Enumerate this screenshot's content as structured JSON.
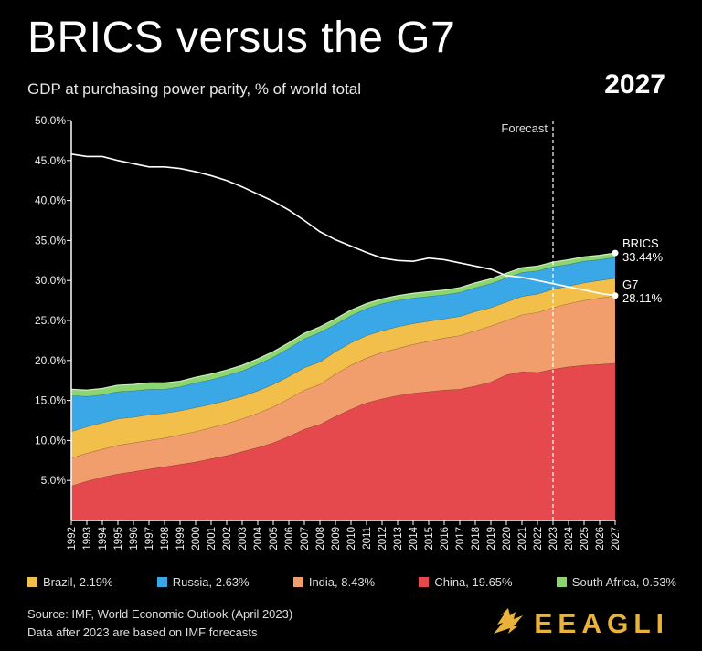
{
  "header": {
    "title": "BRICS versus the G7",
    "subtitle": "GDP at purchasing power parity, % of world total",
    "year": "2027"
  },
  "footer": {
    "source_line1": "Source: IMF, World Economic Outlook (April 2023)",
    "source_line2": "Data after 2023 are based on IMF forecasts",
    "brand": "EEAGLI",
    "brand_icon": "eagle-logo-icon"
  },
  "colors": {
    "background": "#000000",
    "china": "#e5484d",
    "india": "#f29e6c",
    "brazil": "#f2c04a",
    "russia": "#3aa8e6",
    "south_africa": "#8cd672",
    "g7_line": "#ffffff",
    "forecast_line": "#ffffff"
  },
  "legend": [
    {
      "key": "brazil",
      "label": "Brazil, 2.19%"
    },
    {
      "key": "russia",
      "label": "Russia, 2.63%"
    },
    {
      "key": "india",
      "label": "India, 8.43%"
    },
    {
      "key": "china",
      "label": "China, 19.65%"
    },
    {
      "key": "south_africa",
      "label": "South Africa, 0.53%"
    }
  ],
  "chart_data": {
    "type": "area",
    "stacked": true,
    "x": [
      1992,
      1993,
      1994,
      1995,
      1996,
      1997,
      1998,
      1999,
      2000,
      2001,
      2002,
      2003,
      2004,
      2005,
      2006,
      2007,
      2008,
      2009,
      2010,
      2011,
      2012,
      2013,
      2014,
      2015,
      2016,
      2017,
      2018,
      2019,
      2020,
      2021,
      2022,
      2023,
      2024,
      2025,
      2026,
      2027
    ],
    "ylim": [
      0,
      50
    ],
    "yticks": [
      5,
      10,
      15,
      20,
      25,
      30,
      35,
      40,
      45,
      50
    ],
    "ytick_labels": [
      "5.0%",
      "10.0%",
      "15.0%",
      "20.0%",
      "25.0%",
      "30.0%",
      "35.0%",
      "40.0%",
      "45.0%",
      "50.0%"
    ],
    "grid": false,
    "forecast_start": 2023,
    "forecast_label": "Forecast",
    "series": [
      {
        "key": "china",
        "name": "China, 19.65%",
        "values": [
          4.3,
          4.9,
          5.4,
          5.8,
          6.1,
          6.4,
          6.7,
          7.0,
          7.3,
          7.7,
          8.1,
          8.6,
          9.1,
          9.7,
          10.5,
          11.4,
          12.0,
          13.0,
          13.9,
          14.7,
          15.2,
          15.6,
          15.9,
          16.1,
          16.3,
          16.4,
          16.8,
          17.3,
          18.2,
          18.6,
          18.5,
          18.9,
          19.2,
          19.4,
          19.5,
          19.65
        ]
      },
      {
        "key": "india",
        "name": "India, 8.43%",
        "values": [
          3.5,
          3.5,
          3.5,
          3.6,
          3.6,
          3.6,
          3.6,
          3.7,
          3.8,
          3.9,
          4.0,
          4.1,
          4.3,
          4.5,
          4.7,
          4.9,
          5.0,
          5.3,
          5.5,
          5.6,
          5.8,
          5.9,
          6.1,
          6.3,
          6.5,
          6.7,
          6.9,
          7.0,
          6.8,
          7.1,
          7.5,
          7.7,
          7.9,
          8.1,
          8.3,
          8.43
        ]
      },
      {
        "key": "brazil",
        "name": "Brazil, 2.19%",
        "values": [
          3.3,
          3.3,
          3.3,
          3.3,
          3.2,
          3.2,
          3.1,
          3.0,
          3.0,
          2.9,
          2.9,
          2.8,
          2.8,
          2.8,
          2.8,
          2.8,
          2.8,
          2.8,
          2.8,
          2.8,
          2.7,
          2.7,
          2.6,
          2.5,
          2.4,
          2.4,
          2.4,
          2.3,
          2.3,
          2.3,
          2.3,
          2.3,
          2.2,
          2.2,
          2.2,
          2.19
        ]
      },
      {
        "key": "russia",
        "name": "Russia, 2.63%",
        "values": [
          4.5,
          3.8,
          3.5,
          3.4,
          3.3,
          3.2,
          3.0,
          3.0,
          3.1,
          3.1,
          3.1,
          3.2,
          3.3,
          3.4,
          3.5,
          3.6,
          3.7,
          3.4,
          3.4,
          3.4,
          3.4,
          3.3,
          3.2,
          3.1,
          3.0,
          3.0,
          3.0,
          3.0,
          3.0,
          3.0,
          2.9,
          2.8,
          2.7,
          2.7,
          2.6,
          2.63
        ]
      },
      {
        "key": "south_africa",
        "name": "South Africa, 0.53%",
        "values": [
          0.8,
          0.8,
          0.8,
          0.8,
          0.8,
          0.8,
          0.8,
          0.7,
          0.7,
          0.7,
          0.7,
          0.7,
          0.7,
          0.7,
          0.7,
          0.7,
          0.7,
          0.7,
          0.7,
          0.6,
          0.6,
          0.6,
          0.6,
          0.6,
          0.6,
          0.6,
          0.6,
          0.6,
          0.6,
          0.6,
          0.6,
          0.6,
          0.6,
          0.55,
          0.55,
          0.53
        ]
      }
    ],
    "lines": [
      {
        "key": "g7",
        "name": "G7",
        "values": [
          45.8,
          45.5,
          45.5,
          45.0,
          44.6,
          44.2,
          44.2,
          44.0,
          43.6,
          43.1,
          42.5,
          41.7,
          40.8,
          39.9,
          38.8,
          37.5,
          36.1,
          35.1,
          34.3,
          33.5,
          32.8,
          32.5,
          32.4,
          32.8,
          32.6,
          32.2,
          31.8,
          31.4,
          30.6,
          30.4,
          30.0,
          29.6,
          29.2,
          28.8,
          28.4,
          28.11
        ]
      }
    ],
    "end_labels": [
      {
        "key": "brics",
        "name": "BRICS",
        "value_label": "33.44%",
        "value": 33.44
      },
      {
        "key": "g7",
        "name": "G7",
        "value_label": "28.11%",
        "value": 28.11
      }
    ]
  }
}
